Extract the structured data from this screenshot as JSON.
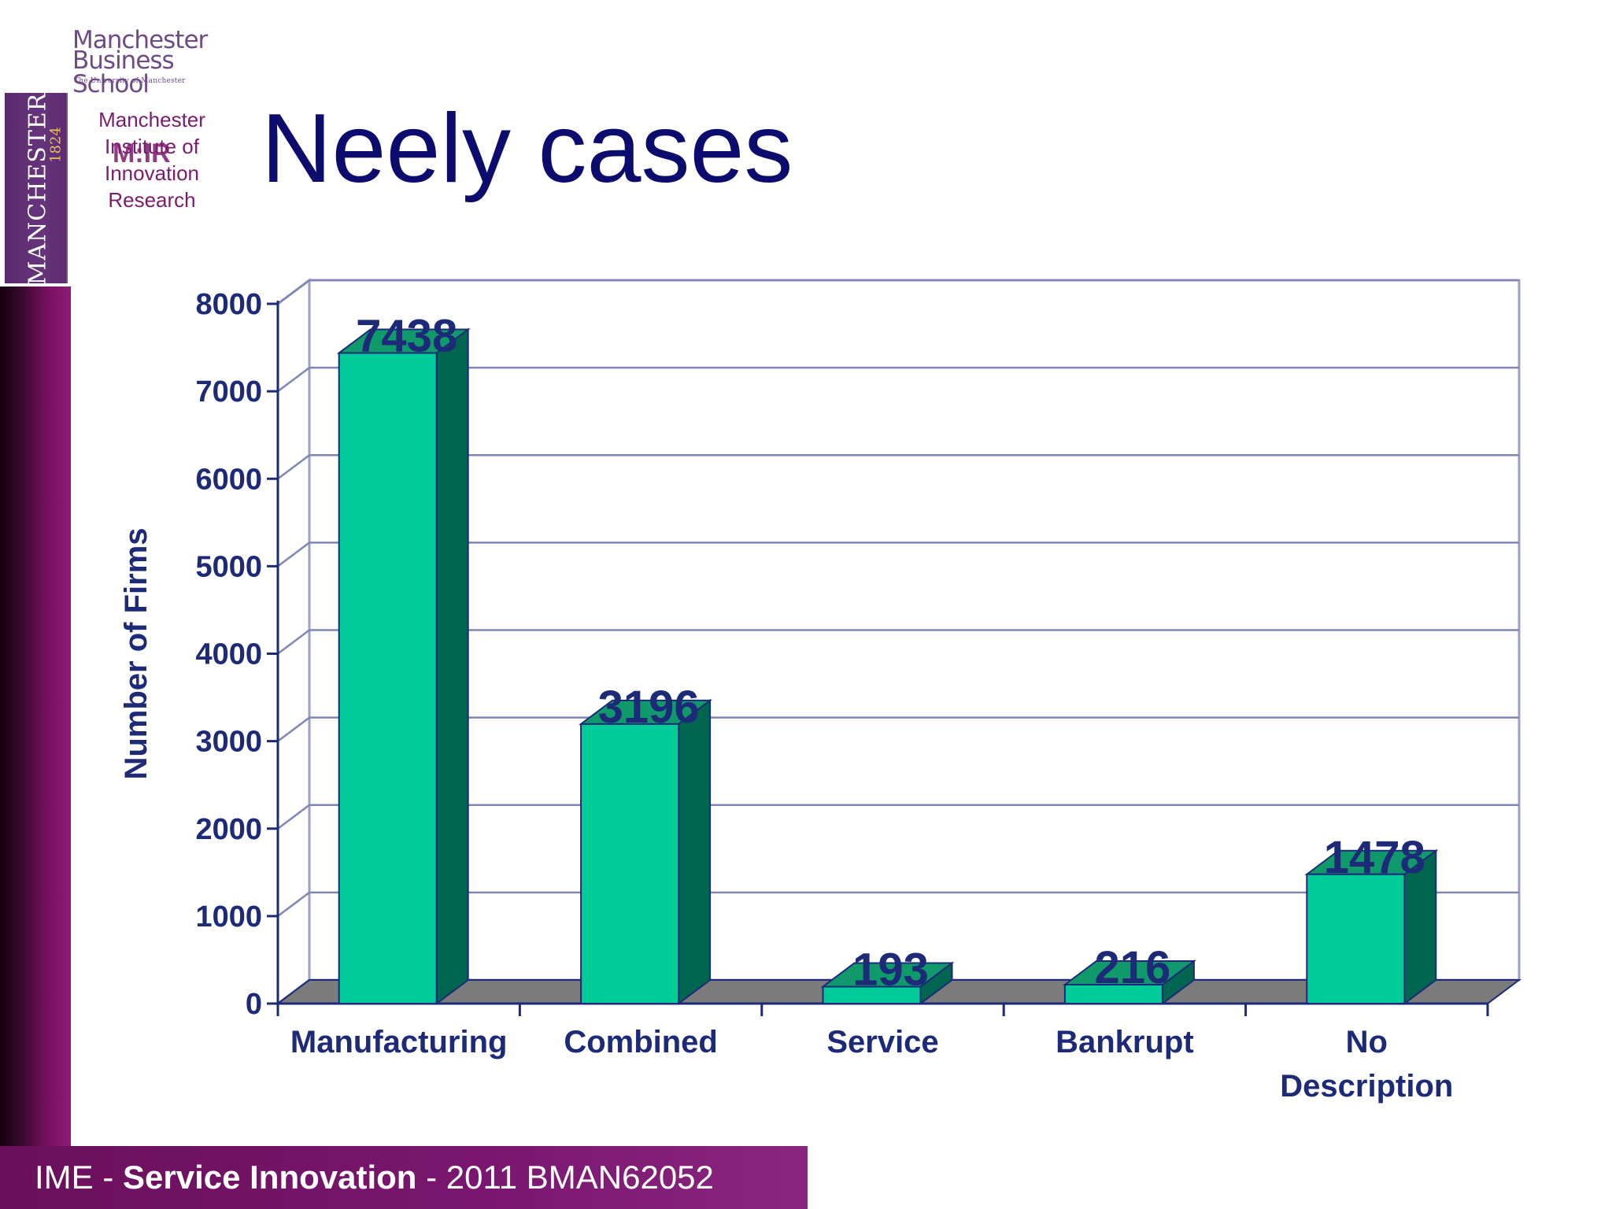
{
  "header": {
    "school_line1": "Manchester",
    "school_line2": "Business School",
    "school_line3": "The University of Manchester",
    "crest_word": "MANCHESTER",
    "crest_year": "1824",
    "institute_lines": [
      "Manchester",
      "Institute of",
      "Innovation",
      "Research"
    ],
    "institute_mark": "M:IR",
    "title": "Neely cases"
  },
  "footer": {
    "prefix": "IME - ",
    "bold": "Service Innovation",
    "suffix": " - 2011 BMAN62052"
  },
  "colors": {
    "title": "#0c0c6e",
    "bar_front": "#00cc99",
    "bar_side": "#006650",
    "bar_top": "#109a6c",
    "axis_text": "#1d2a78",
    "floor": "#7b7b7b",
    "footer_bar": "#7a1670"
  },
  "chart_data": {
    "type": "bar",
    "style": "3d",
    "categories": [
      "Manufacturing",
      "Combined",
      "Service",
      "Bankrupt",
      "No Description"
    ],
    "category_lines": [
      [
        "Manufacturing"
      ],
      [
        "Combined"
      ],
      [
        "Service"
      ],
      [
        "Bankrupt"
      ],
      [
        "No",
        "Description"
      ]
    ],
    "values": [
      7438,
      3196,
      193,
      216,
      1478
    ],
    "data_labels": [
      "7438",
      "3196",
      "193",
      "216",
      "1478"
    ],
    "ylabel": "Number of Firms",
    "xlabel": "",
    "ylim": [
      0,
      8000
    ],
    "yticks": [
      0,
      1000,
      2000,
      3000,
      4000,
      5000,
      6000,
      7000,
      8000
    ],
    "grid": true
  }
}
